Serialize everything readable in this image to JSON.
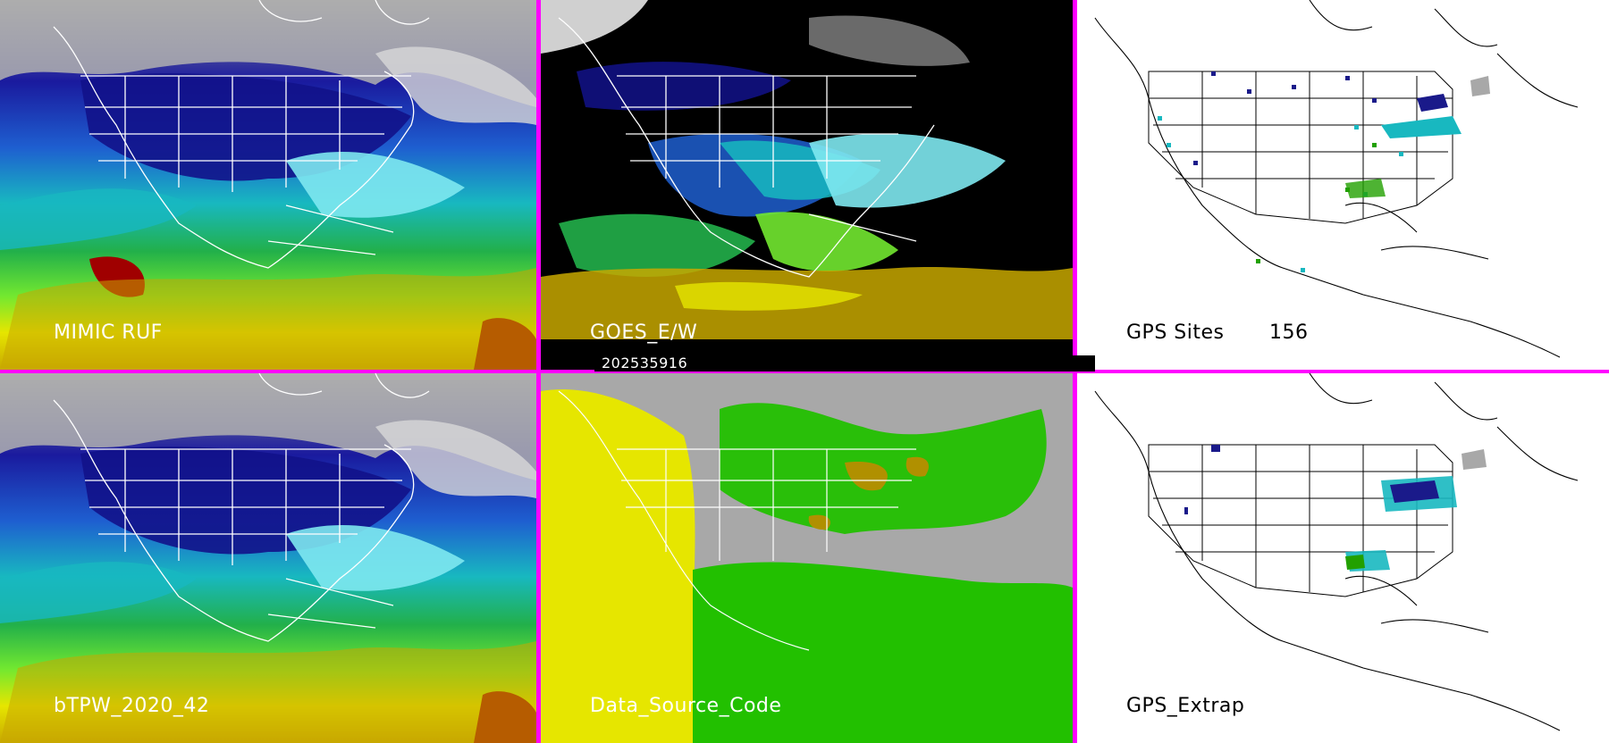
{
  "panels": {
    "mimic_ruf": {
      "label": "MIMIC RUF"
    },
    "goes_ew": {
      "label": "GOES_E/W"
    },
    "gps_sites": {
      "label": "GPS Sites",
      "count": "156"
    },
    "btpw": {
      "label": "bTPW_2020_42"
    },
    "data_source_code": {
      "label": "Data_Source_Code"
    },
    "gps_extrap": {
      "label": "GPS_Extrap"
    }
  },
  "timestamp": "202535916",
  "colors": {
    "divider": "#ff00ff",
    "tpw_scale": [
      "#9a9a9a",
      "#1a1a9e",
      "#1e5fd0",
      "#18b8c0",
      "#7ee8f0",
      "#22b04a",
      "#72e830",
      "#e6e600",
      "#c8a800",
      "#a00000"
    ],
    "source_gray": "#a8a8a8",
    "source_yellow": "#e6e600",
    "source_green": "#22c000",
    "source_olive": "#b09000"
  },
  "icons": [
    "map-image",
    "state-boundaries",
    "coastlines"
  ]
}
